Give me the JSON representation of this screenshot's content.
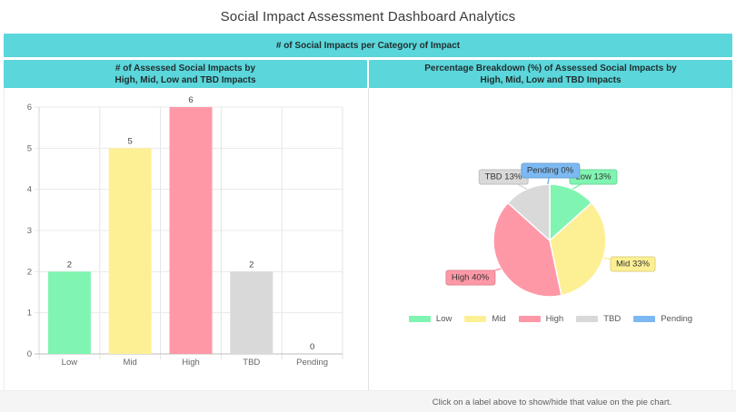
{
  "page": {
    "title": "Social Impact Assessment Dashboard Analytics",
    "banner": "# of Social Impacts per Category of Impact",
    "colors": {
      "teal": "#5bd6db",
      "footer_bg": "#f5f5f5",
      "grid": "#e9e9e9",
      "axis": "#bdbdbd"
    }
  },
  "panels": {
    "left": {
      "header": [
        "# of Assessed Social Impacts by",
        "High, Mid, Low and TBD Impacts"
      ]
    },
    "right": {
      "header": [
        "Percentage Breakdown (%) of Assessed Social Impacts by",
        "High, Mid, Low and TBD Impacts"
      ]
    }
  },
  "footer": {
    "note": "Click on a label above to show/hide that value on the pie chart."
  },
  "chart_data": [
    {
      "type": "bar",
      "title": "# of Assessed Social Impacts by High, Mid, Low and TBD Impacts",
      "categories": [
        "Low",
        "Mid",
        "High",
        "TBD",
        "Pending"
      ],
      "values": [
        2,
        5,
        6,
        2,
        0
      ],
      "data_labels": [
        "2",
        "5",
        "6",
        "2",
        "0"
      ],
      "colors": [
        "#80f5b1",
        "#fdf094",
        "#fe98a7",
        "#d9d9d9",
        "#7cb9f2"
      ],
      "xlabel": "",
      "ylabel": "",
      "ylim": [
        0,
        6
      ],
      "yticks": [
        0,
        1,
        2,
        3,
        4,
        5,
        6
      ],
      "grid": true,
      "legend_position": "none"
    },
    {
      "type": "pie",
      "title": "Percentage Breakdown (%) of Assessed Social Impacts by High, Mid, Low and TBD Impacts",
      "labels": [
        "Low",
        "Mid",
        "High",
        "TBD",
        "Pending"
      ],
      "counts": [
        2,
        5,
        6,
        2,
        0
      ],
      "percentages": [
        13,
        33,
        40,
        13,
        0
      ],
      "data_labels": [
        "Low 13%",
        "Mid 33%",
        "High 40%",
        "TBD 13%",
        "Pending 0%"
      ],
      "colors": [
        "#80f5b1",
        "#fdf094",
        "#fe98a7",
        "#d9d9d9",
        "#7cb9f2"
      ],
      "legend": [
        "Low",
        "Mid",
        "High",
        "TBD",
        "Pending"
      ],
      "legend_position": "bottom"
    }
  ]
}
